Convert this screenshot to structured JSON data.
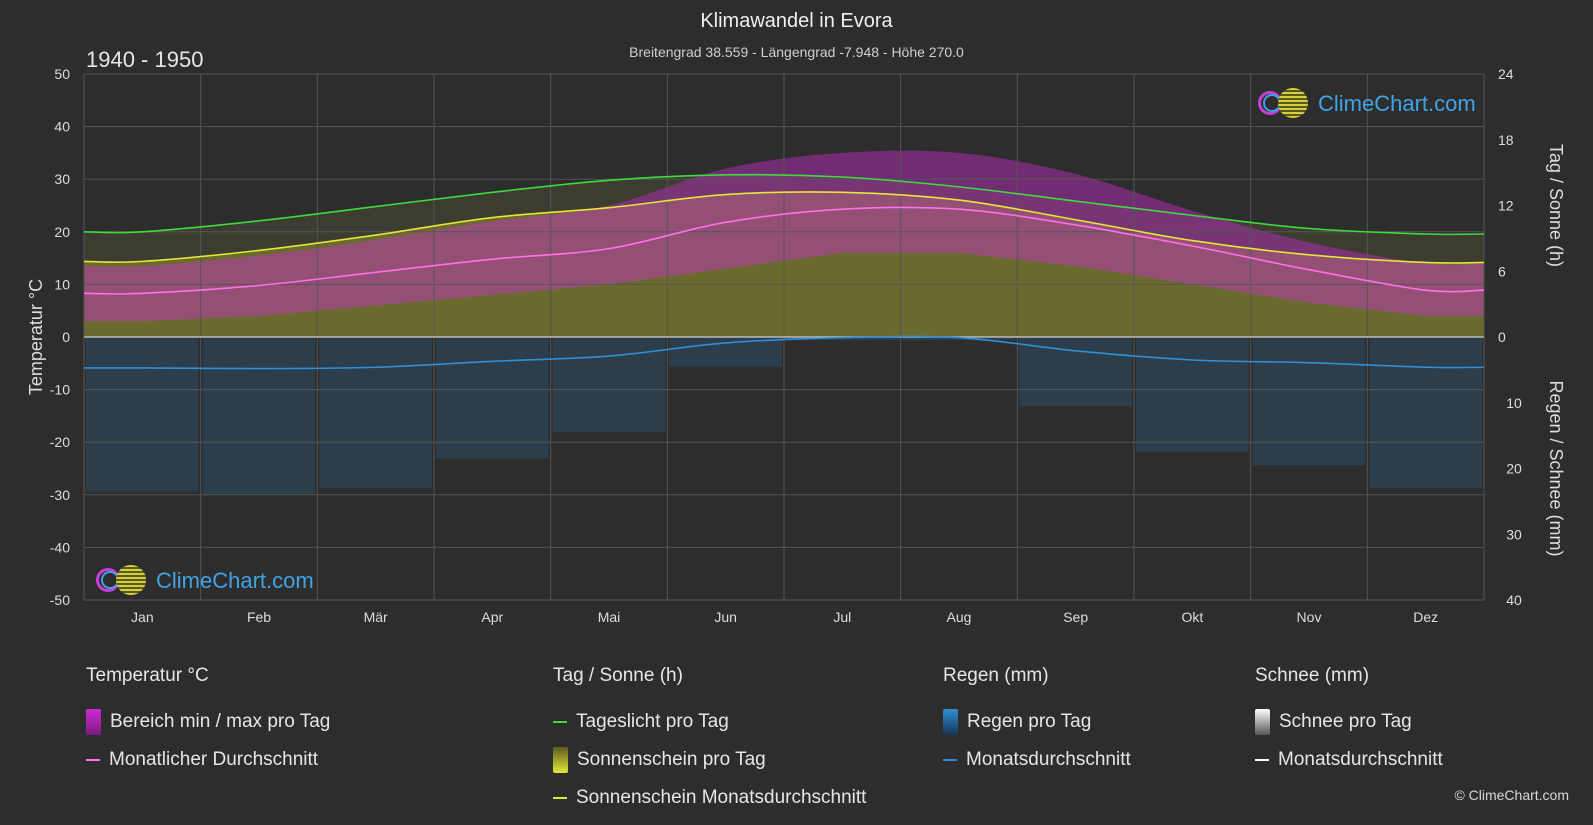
{
  "header": {
    "title": "Klimawandel in Evora",
    "subtitle": "Breitengrad 38.559 - Längengrad -7.948 - Höhe 270.0",
    "period": "1940 - 1950"
  },
  "logo_text": "ClimeChart.com",
  "copyright": "© ClimeChart.com",
  "legend": {
    "temp": {
      "title": "Temperatur °C",
      "range": "Bereich min / max pro Tag",
      "avg": "Monatlicher Durchschnitt"
    },
    "sun": {
      "title": "Tag / Sonne (h)",
      "daylight": "Tageslicht pro Tag",
      "sunshine": "Sonnenschein pro Tag",
      "sunavg": "Sonnenschein Monatsdurchschnitt"
    },
    "rain": {
      "title": "Regen (mm)",
      "day": "Regen pro Tag",
      "avg": "Monatsdurchschnitt"
    },
    "snow": {
      "title": "Schnee (mm)",
      "day": "Schnee pro Tag",
      "avg": "Monatsdurchschnitt"
    }
  },
  "colors": {
    "background": "#2d2d2d",
    "grid": "#555555",
    "daylight": "#3ddc3d",
    "sunshine_line": "#e6e639",
    "sunshine_fill": "#9c9c2a",
    "temp_avg": "#ff6fe8",
    "temp_range": "#d02ad6",
    "rain": "#2f8fd8",
    "snow": "#ffffff"
  },
  "chart_data": {
    "type": "line",
    "categories": [
      "Jan",
      "Feb",
      "Mär",
      "Apr",
      "Mai",
      "Jun",
      "Jul",
      "Aug",
      "Sep",
      "Okt",
      "Nov",
      "Dez"
    ],
    "left_axis": {
      "label": "Temperatur °C",
      "range": [
        -50,
        50
      ],
      "ticks": [
        50,
        40,
        30,
        20,
        10,
        0,
        -10,
        -20,
        -30,
        -40,
        -50
      ]
    },
    "right_axis_top": {
      "label": "Tag / Sonne (h)",
      "range": [
        0,
        24
      ],
      "ticks": [
        24,
        18,
        12,
        6,
        0
      ]
    },
    "right_axis_bottom": {
      "label": "Regen / Schnee (mm)",
      "range": [
        0,
        40
      ],
      "ticks": [
        0,
        10,
        20,
        30,
        40
      ]
    },
    "series": [
      {
        "name": "Tageslicht pro Tag",
        "axis": "hours",
        "values": [
          9.6,
          10.6,
          11.9,
          13.2,
          14.3,
          14.8,
          14.6,
          13.7,
          12.4,
          11.1,
          9.9,
          9.4
        ]
      },
      {
        "name": "Sonnenschein Monatsdurchschnitt",
        "axis": "hours",
        "values": [
          6.9,
          7.9,
          9.3,
          10.9,
          11.8,
          13.0,
          13.2,
          12.5,
          10.7,
          8.8,
          7.5,
          6.8
        ]
      },
      {
        "name": "Monatlicher Durchschnitt",
        "axis": "temp",
        "values": [
          8.3,
          9.8,
          12.3,
          14.8,
          16.8,
          21.8,
          24.3,
          24.3,
          21.3,
          17.3,
          12.8,
          8.9
        ]
      },
      {
        "name": "Bereich min / max pro Tag (max)",
        "axis": "temp",
        "values": [
          13.5,
          15.5,
          18.5,
          22.0,
          25.0,
          32.0,
          35.0,
          35.0,
          31.0,
          24.0,
          18.0,
          14.0
        ]
      },
      {
        "name": "Bereich min / max pro Tag (min)",
        "axis": "temp",
        "values": [
          3.0,
          4.0,
          6.0,
          8.0,
          10.0,
          13.0,
          16.0,
          16.0,
          13.5,
          10.0,
          6.5,
          4.0
        ]
      },
      {
        "name": "Regen Monatsdurchschnitt",
        "axis": "precip",
        "values": [
          4.7,
          4.8,
          4.6,
          3.7,
          2.9,
          0.9,
          0.1,
          0.1,
          2.1,
          3.5,
          3.9,
          4.6
        ]
      }
    ],
    "grid": true
  }
}
